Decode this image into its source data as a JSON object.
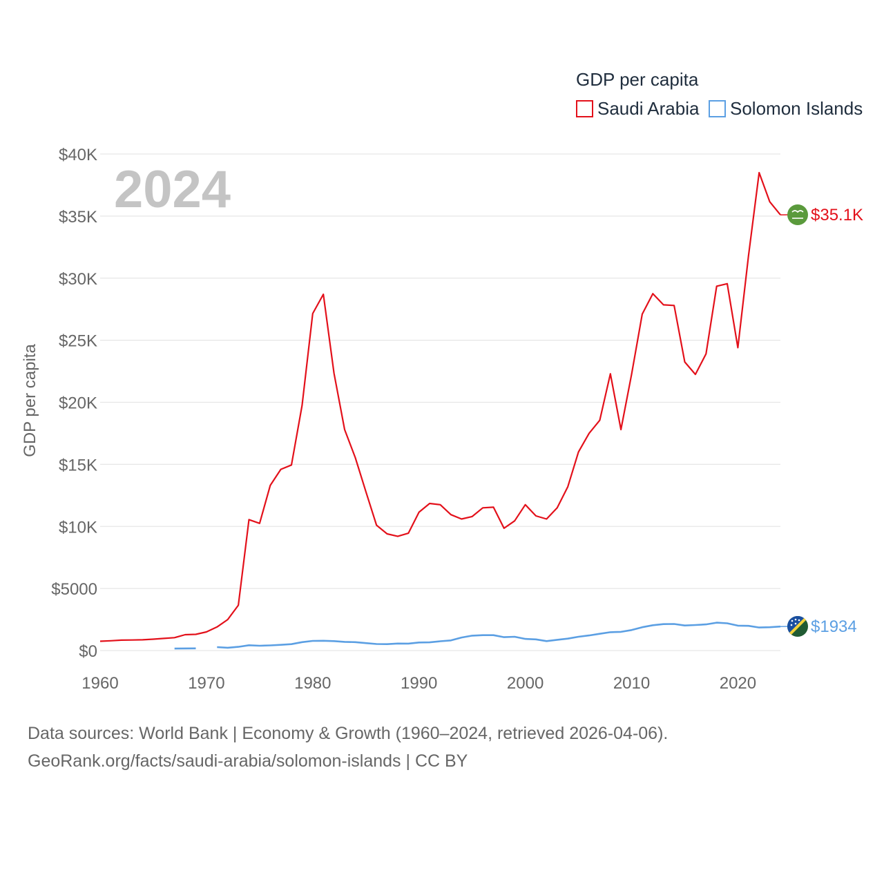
{
  "chart_data": {
    "type": "line",
    "title": "GDP per capita",
    "ylabel": "GDP per capita",
    "xlabel": "",
    "year_watermark": "2024",
    "xlim": [
      1960,
      2024
    ],
    "ylim": [
      0,
      40000
    ],
    "x_ticks": [
      1960,
      1970,
      1980,
      1990,
      2000,
      2010,
      2020
    ],
    "x_tick_labels": [
      "1960",
      "1970",
      "1980",
      "1990",
      "2000",
      "2010",
      "2020"
    ],
    "y_ticks": [
      0,
      5000,
      10000,
      15000,
      20000,
      25000,
      30000,
      35000,
      40000
    ],
    "y_tick_labels": [
      "$0",
      "$5000",
      "$10K",
      "$15K",
      "$20K",
      "$25K",
      "$30K",
      "$35K",
      "$40K"
    ],
    "legend": {
      "title": "GDP per capita",
      "position": "top-right",
      "entries": [
        "Saudi Arabia",
        "Solomon Islands"
      ]
    },
    "series": [
      {
        "name": "Saudi Arabia",
        "color": "#e3101a",
        "end_label": "$35.1K",
        "flag_icon": "saudi-arabia-flag-icon",
        "x": [
          1960,
          1961,
          1962,
          1963,
          1964,
          1965,
          1966,
          1967,
          1968,
          1969,
          1970,
          1971,
          1972,
          1973,
          1974,
          1975,
          1976,
          1977,
          1978,
          1979,
          1980,
          1981,
          1982,
          1983,
          1984,
          1985,
          1986,
          1987,
          1988,
          1989,
          1990,
          1991,
          1992,
          1993,
          1994,
          1995,
          1996,
          1997,
          1998,
          1999,
          2000,
          2001,
          2002,
          2003,
          2004,
          2005,
          2006,
          2007,
          2008,
          2009,
          2010,
          2011,
          2012,
          2013,
          2014,
          2015,
          2016,
          2017,
          2018,
          2019,
          2020,
          2021,
          2022,
          2023,
          2024
        ],
        "values": [
          750,
          790,
          840,
          850,
          870,
          920,
          980,
          1040,
          1280,
          1310,
          1500,
          1900,
          2500,
          3650,
          10550,
          10250,
          13300,
          14600,
          14950,
          19750,
          27150,
          28700,
          22350,
          17800,
          15550,
          12800,
          10100,
          9400,
          9200,
          9450,
          11150,
          11850,
          11750,
          10950,
          10600,
          10800,
          11500,
          11550,
          9850,
          10450,
          11750,
          10850,
          10600,
          11500,
          13200,
          16000,
          17500,
          18550,
          22300,
          17800,
          22250,
          27100,
          28750,
          27850,
          27800,
          23250,
          22250,
          23900,
          29350,
          29550,
          24400,
          31800,
          38500,
          36150,
          35100
        ]
      },
      {
        "name": "Solomon Islands",
        "color": "#5b9fe3",
        "end_label": "$1934",
        "flag_icon": "solomon-islands-flag-icon",
        "x": [
          1967,
          1968,
          1969,
          1970,
          1971,
          1972,
          1973,
          1974,
          1975,
          1976,
          1977,
          1978,
          1979,
          1980,
          1981,
          1982,
          1983,
          1984,
          1985,
          1986,
          1987,
          1988,
          1989,
          1990,
          1991,
          1992,
          1993,
          1994,
          1995,
          1996,
          1997,
          1998,
          1999,
          2000,
          2001,
          2002,
          2003,
          2004,
          2005,
          2006,
          2007,
          2008,
          2009,
          2010,
          2011,
          2012,
          2013,
          2014,
          2015,
          2016,
          2017,
          2018,
          2019,
          2020,
          2021,
          2022,
          2023,
          2024
        ],
        "values": [
          160,
          170,
          180,
          null,
          280,
          230,
          300,
          430,
          390,
          420,
          460,
          520,
          680,
          780,
          790,
          760,
          700,
          680,
          600,
          530,
          520,
          570,
          560,
          650,
          660,
          750,
          820,
          1050,
          1200,
          1240,
          1240,
          1080,
          1110,
          940,
          900,
          760,
          870,
          960,
          1110,
          1220,
          1350,
          1480,
          1510,
          1650,
          1880,
          2040,
          2130,
          2140,
          2020,
          2060,
          2110,
          2250,
          2200,
          2010,
          1990,
          1860,
          1880,
          1934
        ]
      }
    ]
  },
  "footer": {
    "line1": "Data sources: World Bank | Economy & Growth (1960–2024, retrieved 2026-04-06).",
    "line2": "GeoRank.org/facts/saudi-arabia/solomon-islands | CC BY"
  }
}
